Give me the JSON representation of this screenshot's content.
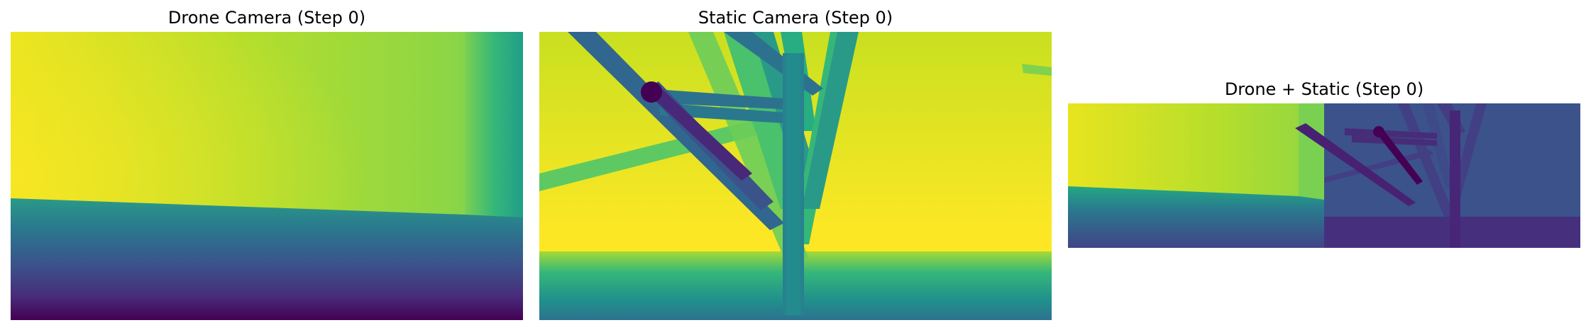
{
  "figure": {
    "panels": [
      {
        "title": "Drone Camera (Step 0)"
      },
      {
        "title": "Static Camera (Step 0)"
      },
      {
        "title": "Drone + Static (Step 0)"
      }
    ]
  },
  "colormap": {
    "name": "viridis",
    "colors": {
      "darkest": "#440154",
      "dark_blue": "#3b528b",
      "teal": "#21918c",
      "green": "#5ec962",
      "lime": "#b5de2b",
      "yellow": "#fde725"
    }
  }
}
